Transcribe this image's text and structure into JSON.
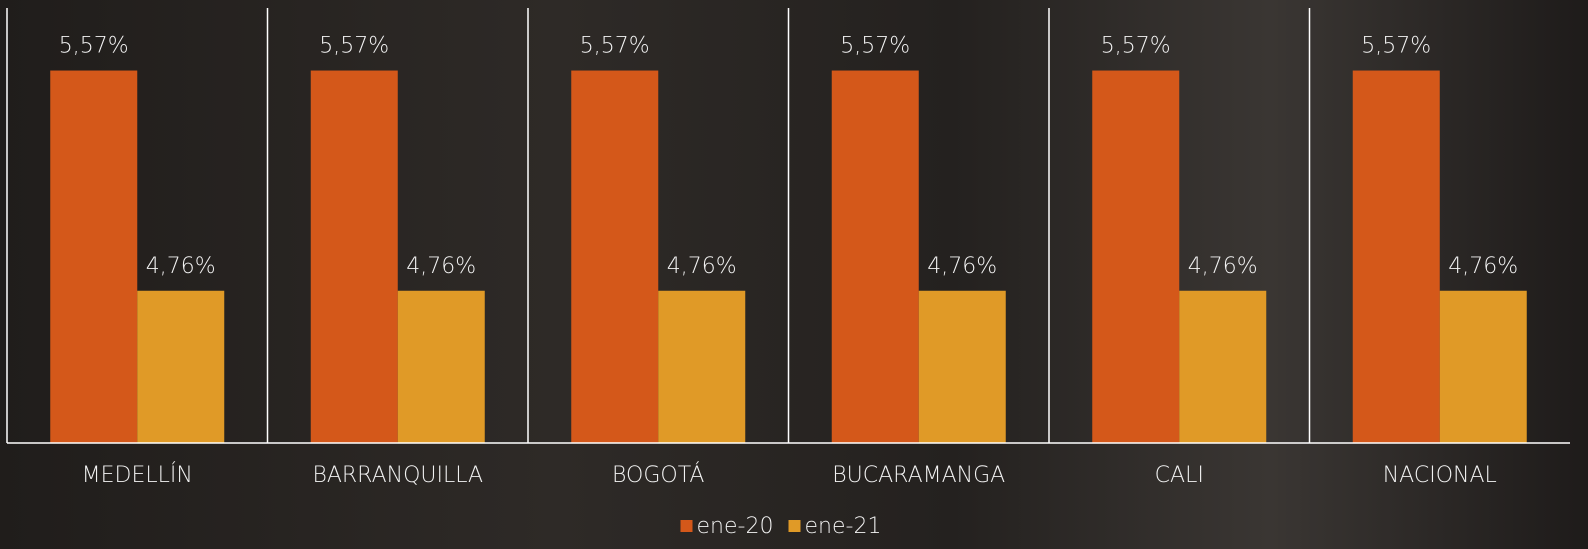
{
  "chart_data": {
    "type": "bar",
    "categories": [
      "MEDELLÍN",
      "BARRANQUILLA",
      "BOGOTÁ",
      "BUCARAMANGA",
      "CALI",
      "NACIONAL"
    ],
    "series": [
      {
        "name": "ene-20",
        "color": "#d4581a",
        "values": [
          5.57,
          5.57,
          5.57,
          5.57,
          5.57,
          5.57
        ],
        "value_labels": [
          "5,57%",
          "5,57%",
          "5,57%",
          "5,57%",
          "5,57%",
          "5,57%"
        ]
      },
      {
        "name": "ene-21",
        "color": "#e09a27",
        "values": [
          4.76,
          4.76,
          4.76,
          4.76,
          4.76,
          4.76
        ],
        "value_labels": [
          "4,76%",
          "4,76%",
          "4,76%",
          "4,76%",
          "4,76%",
          "4,76%"
        ]
      }
    ],
    "ylim": [
      4.2,
      5.8
    ],
    "legend": "bottom"
  }
}
